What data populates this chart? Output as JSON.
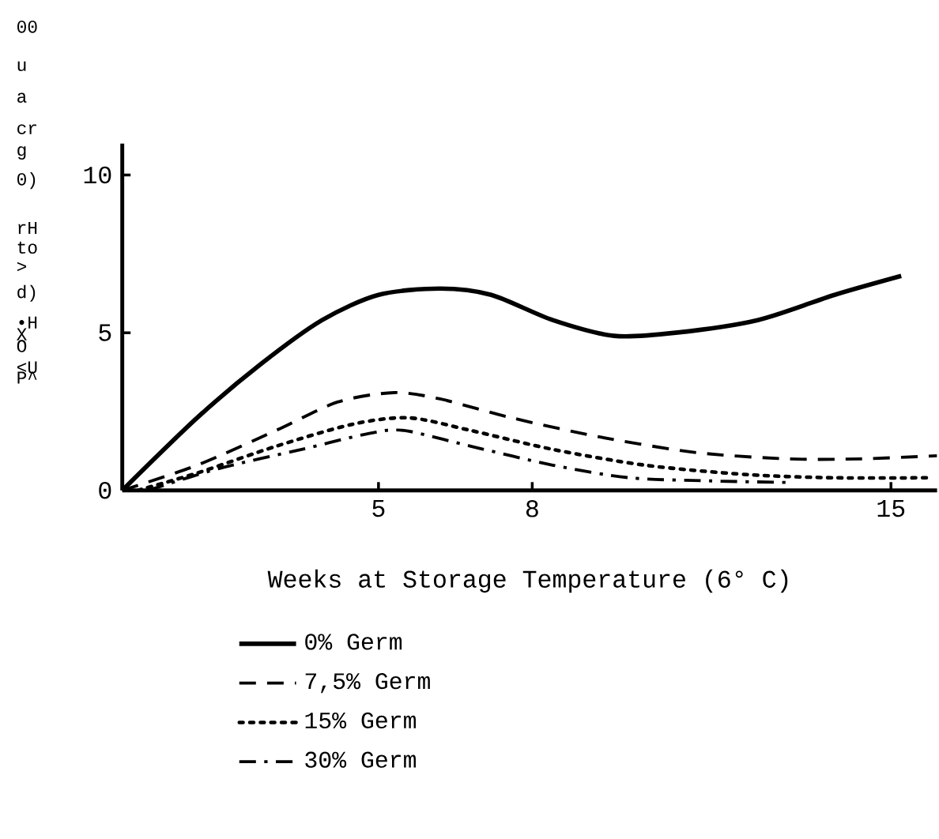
{
  "chart_data": {
    "type": "line",
    "xlabel": "Weeks at Storage Temperature (6° C)",
    "xlim": [
      0,
      15.9
    ],
    "xticks": [
      5,
      8,
      15
    ],
    "ylim": [
      0,
      11
    ],
    "yticks": [
      0,
      5,
      10
    ],
    "legend": "bottom",
    "grid": false,
    "marker": "none",
    "annotations": [
      "00",
      "u",
      "a",
      "cr",
      "g",
      "0)",
      "rH",
      "to",
      ">",
      "d)",
      "•H",
      "X",
      "O",
      "<U",
      "P^"
    ],
    "series": [
      {
        "name": "0% Germ",
        "color": "#000000",
        "line_style": "solid",
        "x": [
          0,
          1.46,
          2.7,
          3.9,
          5.0,
          6.2,
          7.2,
          8.4,
          9.6,
          10.8,
          12.4,
          13.9,
          15.2
        ],
        "values": [
          0,
          2.3,
          4.0,
          5.4,
          6.2,
          6.4,
          6.2,
          5.4,
          4.9,
          5.0,
          5.4,
          6.2,
          6.8
        ]
      },
      {
        "name": "7,5% Germ",
        "color": "#000000",
        "line_style": "dashed",
        "x": [
          0,
          1.46,
          3.0,
          4.2,
          5.3,
          6.2,
          7.6,
          9.3,
          11.2,
          13.0,
          14.4,
          15.9
        ],
        "values": [
          0,
          0.8,
          1.9,
          2.8,
          3.1,
          2.9,
          2.3,
          1.7,
          1.2,
          1.0,
          1.0,
          1.1
        ]
      },
      {
        "name": "15% Germ",
        "color": "#000000",
        "line_style": "dotted",
        "x": [
          0.3,
          1.46,
          3.0,
          4.5,
          5.6,
          6.8,
          8.4,
          10.2,
          12.2,
          13.9,
          15.7
        ],
        "values": [
          0,
          0.55,
          1.4,
          2.1,
          2.3,
          1.9,
          1.3,
          0.8,
          0.5,
          0.4,
          0.4
        ]
      },
      {
        "name": "30% Germ",
        "color": "#000000",
        "line_style": "dashdotted",
        "x": [
          0.5,
          1.9,
          3.5,
          4.8,
          5.5,
          6.8,
          8.4,
          9.9,
          11.5,
          13.0
        ],
        "values": [
          0,
          0.7,
          1.3,
          1.8,
          1.9,
          1.4,
          0.8,
          0.4,
          0.3,
          0.25
        ]
      }
    ]
  }
}
